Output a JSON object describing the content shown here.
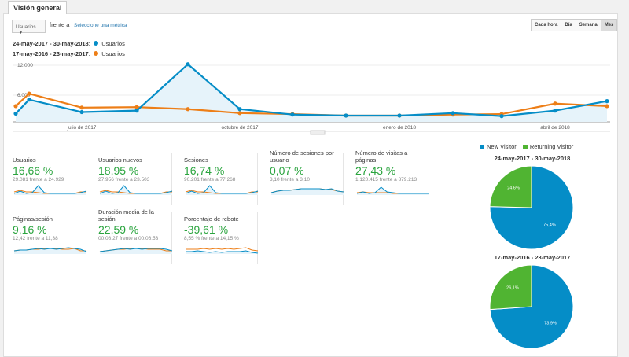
{
  "tab": "Visión general",
  "metric_select": "Usuarios",
  "versus": "frente a",
  "select_metric_link": "Seleccione una métrica",
  "legend": [
    {
      "range": "24-may-2017 - 30-may-2018:",
      "series": "Usuarios",
      "color": "#058dc7"
    },
    {
      "range": "17-may-2016 - 23-may-2017:",
      "series": "Usuarios",
      "color": "#ed7e17"
    }
  ],
  "time_buttons": [
    {
      "label": "Cada hora",
      "active": false
    },
    {
      "label": "Día",
      "active": false
    },
    {
      "label": "Semana",
      "active": false
    },
    {
      "label": "Mes",
      "active": true
    }
  ],
  "chart_data": [
    {
      "type": "line",
      "y_ticks": [
        "12.000",
        "6.000"
      ],
      "ylim": [
        0,
        12000
      ],
      "x_labels": [
        "julio de 2017",
        "octubre de 2017",
        "enero de 2018",
        "abril de 2018"
      ],
      "series": [
        {
          "name": "Usuarios",
          "period": "24-may-2017 - 30-may-2018",
          "color": "#058dc7",
          "values": [
            2300,
            5100,
            2600,
            2900,
            12200,
            3200,
            2100,
            1900,
            1900,
            2400,
            1800,
            2900,
            4800
          ]
        },
        {
          "name": "Usuarios",
          "period": "17-may-2016 - 23-may-2017",
          "color": "#ed7e17",
          "values": [
            3800,
            6300,
            3500,
            3600,
            3200,
            2400,
            2200,
            1900,
            1900,
            2100,
            2200,
            4300,
            3800
          ]
        }
      ]
    },
    {
      "type": "pie",
      "title": "24-may-2017 - 30-may-2018",
      "slices": [
        {
          "name": "New Visitor",
          "value": 75.4,
          "label": "75,4%",
          "color": "#058dc7"
        },
        {
          "name": "Returning Visitor",
          "value": 24.6,
          "label": "24,6%",
          "color": "#50b432"
        }
      ]
    },
    {
      "type": "pie",
      "title": "17-may-2016 - 23-may-2017",
      "slices": [
        {
          "name": "New Visitor",
          "value": 73.9,
          "label": "73,9%",
          "color": "#058dc7"
        },
        {
          "name": "Returning Visitor",
          "value": 26.1,
          "label": "26,1%",
          "color": "#50b432"
        }
      ]
    }
  ],
  "pie_legend": [
    {
      "label": "New Visitor",
      "color": "#058dc7"
    },
    {
      "label": "Returning Visitor",
      "color": "#50b432"
    }
  ],
  "metrics": [
    {
      "label": "Usuarios",
      "pct": "16,66 %",
      "compare": "29.081 frente a 24.929",
      "spark": {
        "a": [
          2,
          5,
          2,
          3,
          12,
          3,
          2,
          2,
          2,
          2,
          2,
          3,
          5
        ],
        "b": [
          4,
          6,
          4,
          4,
          3,
          2,
          2,
          2,
          2,
          2,
          2,
          4,
          4
        ]
      }
    },
    {
      "label": "Usuarios nuevos",
      "pct": "18,95 %",
      "compare": "27.956 frente a 23.503",
      "spark": {
        "a": [
          2,
          5,
          2,
          3,
          12,
          3,
          2,
          2,
          2,
          2,
          2,
          3,
          5
        ],
        "b": [
          4,
          6,
          4,
          4,
          3,
          2,
          2,
          2,
          2,
          2,
          2,
          4,
          4
        ]
      }
    },
    {
      "label": "Sesiones",
      "pct": "16,74 %",
      "compare": "90.201 frente a 77.268",
      "spark": {
        "a": [
          2,
          5,
          2,
          3,
          12,
          3,
          2,
          2,
          2,
          2,
          2,
          3,
          5
        ],
        "b": [
          4,
          6,
          4,
          4,
          3,
          2,
          2,
          2,
          2,
          2,
          2,
          4,
          4
        ]
      }
    },
    {
      "label": "Número de sesiones por usuario",
      "pct": "0,07 %",
      "compare": "3,10 frente a 3,10",
      "spark": {
        "a": [
          3,
          5,
          6,
          6,
          7,
          8,
          8,
          8,
          8,
          7,
          8,
          5,
          4
        ],
        "b": [
          3,
          5,
          6,
          6,
          7,
          8,
          8,
          8,
          8,
          7,
          7,
          5,
          4
        ]
      }
    },
    {
      "label": "Número de visitas a páginas",
      "pct": "27,43 %",
      "compare": "1.120.415 frente a 879.213",
      "spark": {
        "a": [
          2,
          4,
          2,
          3,
          10,
          4,
          3,
          2,
          2,
          2,
          2,
          2,
          2
        ],
        "b": [
          3,
          4,
          3,
          3,
          3,
          3,
          2,
          2,
          2,
          2,
          2,
          2,
          2
        ]
      }
    },
    {
      "label": "Páginas/sesión",
      "pct": "9,16 %",
      "compare": "12,42 frente a 11,38",
      "spark": {
        "a": [
          4,
          5,
          5,
          6,
          7,
          6,
          7,
          6,
          7,
          8,
          7,
          6,
          3
        ],
        "b": [
          4,
          5,
          5,
          6,
          6,
          7,
          7,
          7,
          6,
          6,
          7,
          4,
          4
        ]
      }
    },
    {
      "label": "Duración media de la sesión",
      "pct": "22,59 %",
      "compare": "00:08:27 frente a 00:06:53",
      "spark": {
        "a": [
          3,
          4,
          5,
          6,
          7,
          6,
          7,
          6,
          7,
          7,
          7,
          6,
          4
        ],
        "b": [
          3,
          4,
          5,
          6,
          6,
          7,
          7,
          7,
          6,
          6,
          6,
          4,
          4
        ]
      }
    },
    {
      "label": "Porcentaje de rebote",
      "pct": "-39,61 %",
      "compare": "8,55 % frente a 14,15 %",
      "spark": {
        "a": [
          3,
          3,
          4,
          3,
          2,
          3,
          2,
          3,
          3,
          3,
          4,
          2,
          1
        ],
        "b": [
          6,
          6,
          6,
          7,
          6,
          7,
          6,
          7,
          6,
          7,
          8,
          5,
          4
        ]
      }
    }
  ]
}
